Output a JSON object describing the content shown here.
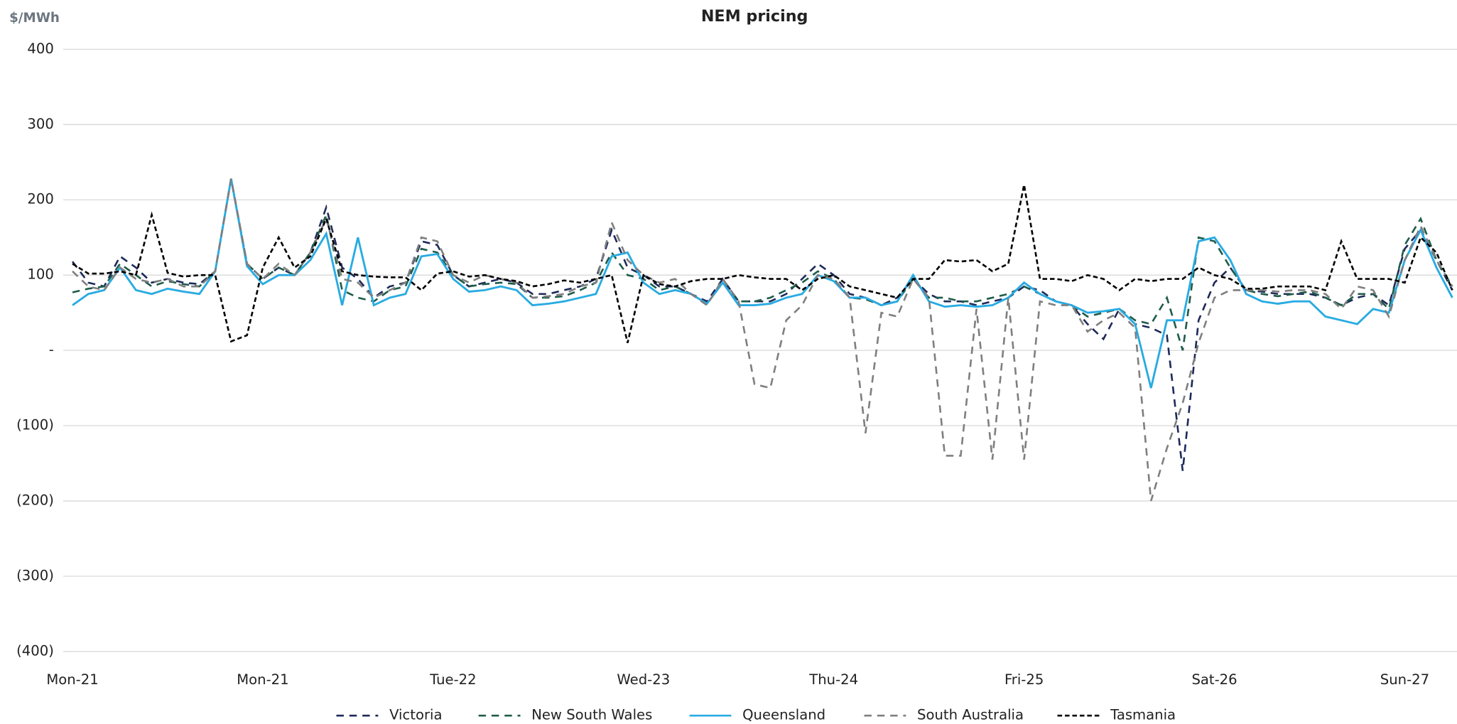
{
  "chart_data": {
    "type": "line",
    "title": "NEM pricing",
    "y_label": "$/MWh",
    "categories": [
      "Mon-21",
      null,
      null,
      null,
      null,
      null,
      null,
      null,
      null,
      null,
      null,
      null,
      "Mon-21",
      null,
      null,
      null,
      null,
      null,
      null,
      null,
      null,
      null,
      null,
      null,
      "Tue-22",
      null,
      null,
      null,
      null,
      null,
      null,
      null,
      null,
      null,
      null,
      null,
      "Wed-23",
      null,
      null,
      null,
      null,
      null,
      null,
      null,
      null,
      null,
      null,
      null,
      "Thu-24",
      null,
      null,
      null,
      null,
      null,
      null,
      null,
      null,
      null,
      null,
      null,
      "Fri-25",
      null,
      null,
      null,
      null,
      null,
      null,
      null,
      null,
      null,
      null,
      null,
      "Sat-26",
      null,
      null,
      null,
      null,
      null,
      null,
      null,
      null,
      null,
      null,
      null,
      "Sun-27",
      null,
      null,
      null
    ],
    "ylim": [
      -400,
      400
    ],
    "yticks": [
      {
        "value": -400,
        "label": "(400)"
      },
      {
        "value": -300,
        "label": "(300)"
      },
      {
        "value": -200,
        "label": "(200)"
      },
      {
        "value": -100,
        "label": "(100)"
      },
      {
        "value": 0,
        "label": "-"
      },
      100,
      200,
      300,
      400
    ],
    "grid": true,
    "legend": "bottom",
    "series": [
      {
        "name": "Victoria",
        "color": "#1f2a5a",
        "dash": "dashed",
        "values": [
          118,
          90,
          85,
          125,
          110,
          90,
          95,
          90,
          88,
          105,
          228,
          115,
          95,
          110,
          100,
          130,
          190,
          110,
          95,
          70,
          85,
          90,
          145,
          140,
          100,
          85,
          90,
          95,
          90,
          75,
          75,
          80,
          85,
          95,
          160,
          110,
          100,
          85,
          85,
          75,
          65,
          95,
          65,
          65,
          65,
          75,
          95,
          115,
          100,
          75,
          70,
          60,
          70,
          95,
          75,
          65,
          65,
          60,
          65,
          70,
          85,
          80,
          65,
          60,
          35,
          15,
          55,
          35,
          30,
          20,
          -160,
          40,
          90,
          110,
          80,
          78,
          75,
          75,
          75,
          70,
          60,
          70,
          75,
          60,
          135,
          160,
          120,
          80
        ]
      },
      {
        "name": "New South Wales",
        "color": "#1e5c4a",
        "dash": "dashed",
        "values": [
          77,
          82,
          85,
          115,
          100,
          85,
          92,
          88,
          85,
          105,
          228,
          115,
          95,
          110,
          100,
          130,
          180,
          80,
          70,
          65,
          80,
          85,
          135,
          130,
          100,
          85,
          88,
          90,
          88,
          70,
          70,
          72,
          80,
          90,
          130,
          100,
          95,
          80,
          85,
          75,
          62,
          90,
          65,
          65,
          70,
          80,
          90,
          105,
          95,
          70,
          68,
          60,
          65,
          95,
          70,
          70,
          65,
          65,
          70,
          75,
          85,
          75,
          65,
          60,
          45,
          50,
          55,
          40,
          35,
          70,
          0,
          150,
          145,
          110,
          80,
          75,
          72,
          75,
          78,
          70,
          60,
          75,
          75,
          55,
          140,
          175,
          120,
          85
        ]
      },
      {
        "name": "Queensland",
        "color": "#29abe2",
        "dash": "solid",
        "values": [
          60,
          75,
          80,
          110,
          80,
          75,
          82,
          78,
          75,
          105,
          228,
          112,
          88,
          100,
          100,
          120,
          155,
          60,
          150,
          60,
          70,
          75,
          125,
          128,
          95,
          78,
          80,
          85,
          80,
          60,
          62,
          65,
          70,
          75,
          125,
          130,
          90,
          75,
          80,
          75,
          62,
          90,
          60,
          60,
          62,
          70,
          75,
          100,
          92,
          70,
          70,
          60,
          65,
          100,
          65,
          58,
          60,
          58,
          60,
          70,
          90,
          75,
          65,
          60,
          50,
          52,
          55,
          35,
          -50,
          40,
          40,
          145,
          150,
          120,
          75,
          65,
          62,
          65,
          65,
          45,
          40,
          35,
          55,
          50,
          120,
          160,
          110,
          70
        ]
      },
      {
        "name": "South Australia",
        "color": "#7f7f7f",
        "dash": "dashed",
        "values": [
          105,
          85,
          80,
          110,
          95,
          90,
          95,
          85,
          85,
          105,
          228,
          115,
          95,
          115,
          100,
          130,
          175,
          95,
          90,
          70,
          80,
          90,
          150,
          145,
          100,
          90,
          100,
          95,
          90,
          70,
          72,
          75,
          85,
          90,
          170,
          120,
          100,
          90,
          95,
          75,
          60,
          95,
          65,
          -45,
          -50,
          40,
          60,
          100,
          95,
          70,
          -110,
          50,
          45,
          95,
          70,
          -140,
          -140,
          55,
          -145,
          70,
          -145,
          65,
          60,
          60,
          25,
          40,
          50,
          30,
          -200,
          -130,
          -70,
          10,
          70,
          80,
          80,
          80,
          78,
          80,
          80,
          75,
          55,
          85,
          80,
          45,
          120,
          165,
          120,
          85
        ]
      },
      {
        "name": "Tasmania",
        "color": "#000000",
        "dash": "short",
        "values": [
          115,
          102,
          102,
          105,
          100,
          180,
          103,
          98,
          100,
          100,
          12,
          20,
          110,
          150,
          110,
          125,
          175,
          105,
          100,
          98,
          97,
          97,
          80,
          102,
          105,
          98,
          100,
          95,
          92,
          85,
          88,
          93,
          90,
          95,
          100,
          10,
          100,
          88,
          85,
          92,
          95,
          95,
          100,
          97,
          95,
          95,
          80,
          95,
          100,
          85,
          80,
          75,
          70,
          95,
          95,
          120,
          118,
          120,
          105,
          115,
          220,
          95,
          95,
          92,
          100,
          95,
          80,
          95,
          92,
          95,
          95,
          110,
          100,
          95,
          82,
          82,
          85,
          85,
          85,
          80,
          145,
          95,
          95,
          95,
          90,
          150,
          130,
          80
        ]
      }
    ]
  }
}
